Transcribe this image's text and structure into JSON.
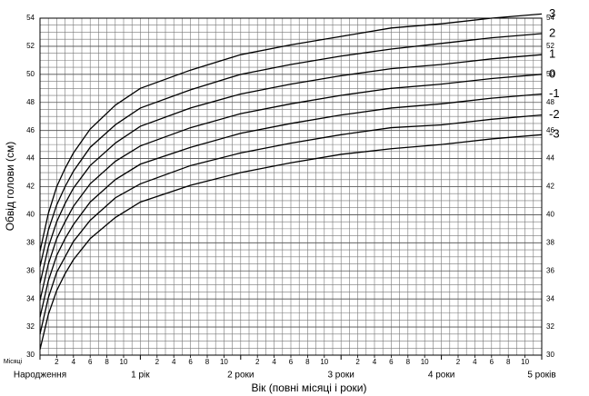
{
  "chart_data": {
    "type": "line",
    "y_label": "Обвід голови (см)",
    "x_label": "Вік (повні місяці і роки)",
    "x_unit_label": "Місяці",
    "x": [
      0,
      1,
      2,
      3,
      4,
      6,
      9,
      12,
      18,
      24,
      30,
      36,
      42,
      48,
      54,
      60
    ],
    "xlim": [
      0,
      60
    ],
    "xticks": [
      2,
      4,
      6,
      8,
      10,
      {
        "value": 14,
        "label": "2"
      },
      {
        "value": 16,
        "label": "4"
      },
      {
        "value": 18,
        "label": "6"
      },
      {
        "value": 20,
        "label": "8"
      },
      {
        "value": 22,
        "label": "10"
      },
      {
        "value": 26,
        "label": "2"
      },
      {
        "value": 28,
        "label": "4"
      },
      {
        "value": 30,
        "label": "6"
      },
      {
        "value": 32,
        "label": "8"
      },
      {
        "value": 34,
        "label": "10"
      },
      {
        "value": 38,
        "label": "2"
      },
      {
        "value": 40,
        "label": "4"
      },
      {
        "value": 42,
        "label": "6"
      },
      {
        "value": 44,
        "label": "8"
      },
      {
        "value": 46,
        "label": "10"
      },
      {
        "value": 50,
        "label": "2"
      },
      {
        "value": 52,
        "label": "4"
      },
      {
        "value": 54,
        "label": "6"
      },
      {
        "value": 56,
        "label": "8"
      },
      {
        "value": 58,
        "label": "10"
      }
    ],
    "xticks_years": [
      {
        "value": 0,
        "label": "Народження"
      },
      {
        "value": 12,
        "label": "1 рік"
      },
      {
        "value": 24,
        "label": "2 роки"
      },
      {
        "value": 36,
        "label": "3 роки"
      },
      {
        "value": 48,
        "label": "4 роки"
      },
      {
        "value": 60,
        "label": "5 років"
      }
    ],
    "ylim": [
      30,
      54
    ],
    "yticks": [
      30,
      32,
      34,
      36,
      38,
      40,
      42,
      44,
      46,
      48,
      50,
      52,
      54
    ],
    "grid": true,
    "series": [
      {
        "name": "3",
        "color": "#000000",
        "values": [
          37.4,
          40.1,
          42.0,
          43.3,
          44.4,
          46.1,
          47.8,
          49.0,
          50.3,
          51.4,
          52.1,
          52.7,
          53.3,
          53.6,
          54.0,
          54.3
        ]
      },
      {
        "name": "2",
        "color": "#000000",
        "values": [
          36.3,
          38.9,
          40.7,
          42.0,
          43.1,
          44.8,
          46.4,
          47.6,
          48.9,
          50.0,
          50.7,
          51.3,
          51.8,
          52.2,
          52.6,
          52.9
        ]
      },
      {
        "name": "1",
        "color": "#000000",
        "values": [
          35.1,
          37.7,
          39.5,
          40.8,
          41.9,
          43.5,
          45.1,
          46.3,
          47.6,
          48.6,
          49.3,
          49.9,
          50.4,
          50.7,
          51.1,
          51.4
        ]
      },
      {
        "name": "0",
        "color": "#000000",
        "values": [
          33.9,
          36.5,
          38.3,
          39.5,
          40.6,
          42.2,
          43.8,
          44.9,
          46.2,
          47.2,
          47.9,
          48.5,
          49.0,
          49.3,
          49.7,
          50.0
        ]
      },
      {
        "name": "-1",
        "color": "#000000",
        "values": [
          32.7,
          35.3,
          37.1,
          38.3,
          39.3,
          40.9,
          42.5,
          43.6,
          44.8,
          45.8,
          46.5,
          47.1,
          47.6,
          47.9,
          48.3,
          48.6
        ]
      },
      {
        "name": "-2",
        "color": "#000000",
        "values": [
          31.5,
          34.1,
          35.9,
          37.0,
          38.1,
          39.6,
          41.2,
          42.2,
          43.5,
          44.4,
          45.1,
          45.7,
          46.2,
          46.4,
          46.8,
          47.1
        ]
      },
      {
        "name": "-3",
        "color": "#000000",
        "values": [
          30.4,
          32.9,
          34.6,
          35.8,
          36.8,
          38.3,
          39.8,
          40.9,
          42.1,
          43.0,
          43.7,
          44.3,
          44.7,
          45.0,
          45.4,
          45.7
        ]
      }
    ]
  }
}
